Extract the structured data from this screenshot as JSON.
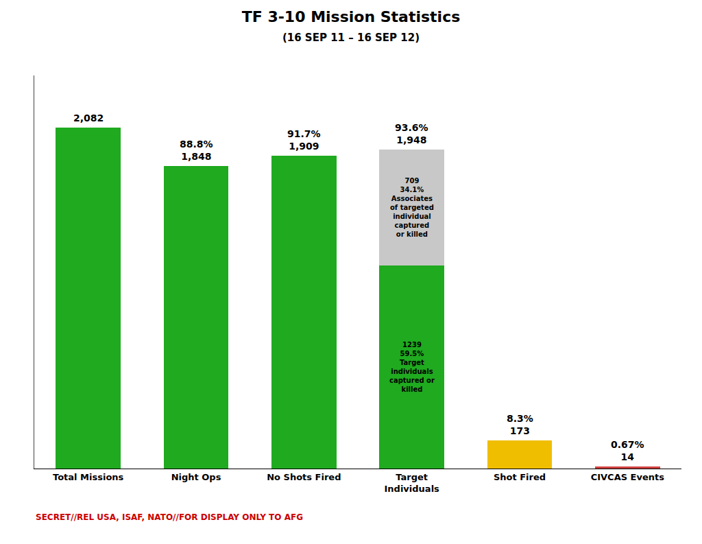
{
  "chart_data": {
    "type": "bar",
    "title": "TF 3-10 Mission Statistics",
    "subtitle": "(16 SEP 11 – 16 SEP 12)",
    "categories": [
      "Total Missions",
      "Night Ops",
      "No Shots Fired",
      "Target\nIndividuals",
      "Shot Fired",
      "CIVCAS Events"
    ],
    "stacked": true,
    "series": [
      {
        "values": [
          2082,
          1848,
          1909,
          1239,
          173,
          14
        ],
        "colors": [
          "#1faa1f",
          "#1faa1f",
          "#1faa1f",
          "#1faa1f",
          "#f0be00",
          "#d04040"
        ]
      },
      {
        "values": [
          null,
          null,
          null,
          709,
          null,
          null
        ],
        "color": "#c8c8c8"
      }
    ],
    "totals": [
      2082,
      1848,
      1909,
      1948,
      173,
      14
    ],
    "total_labels": [
      "2,082",
      "1,848",
      "1,909",
      "1,948",
      "173",
      "14"
    ],
    "percent_labels": [
      null,
      "88.8%",
      "91.7%",
      "93.6%",
      "8.3%",
      "0.67%"
    ],
    "annotations": [
      {
        "category": "Target\nIndividuals",
        "series": 0,
        "text": "1239\n59.5%\nTarget\nindividuals\ncaptured or\nkilled"
      },
      {
        "category": "Target\nIndividuals",
        "series": 1,
        "text": "709\n34.1%\nAssociates\nof targeted\nindividual\ncaptured\nor killed"
      }
    ],
    "footer": {
      "text": "SECRET//REL USA, ISAF, NATO//FOR DISPLAY ONLY TO AFG",
      "color": "#cc0000"
    },
    "ylim": [
      0,
      2400
    ],
    "yticks": [],
    "grid": false,
    "tick_labels": "x"
  }
}
